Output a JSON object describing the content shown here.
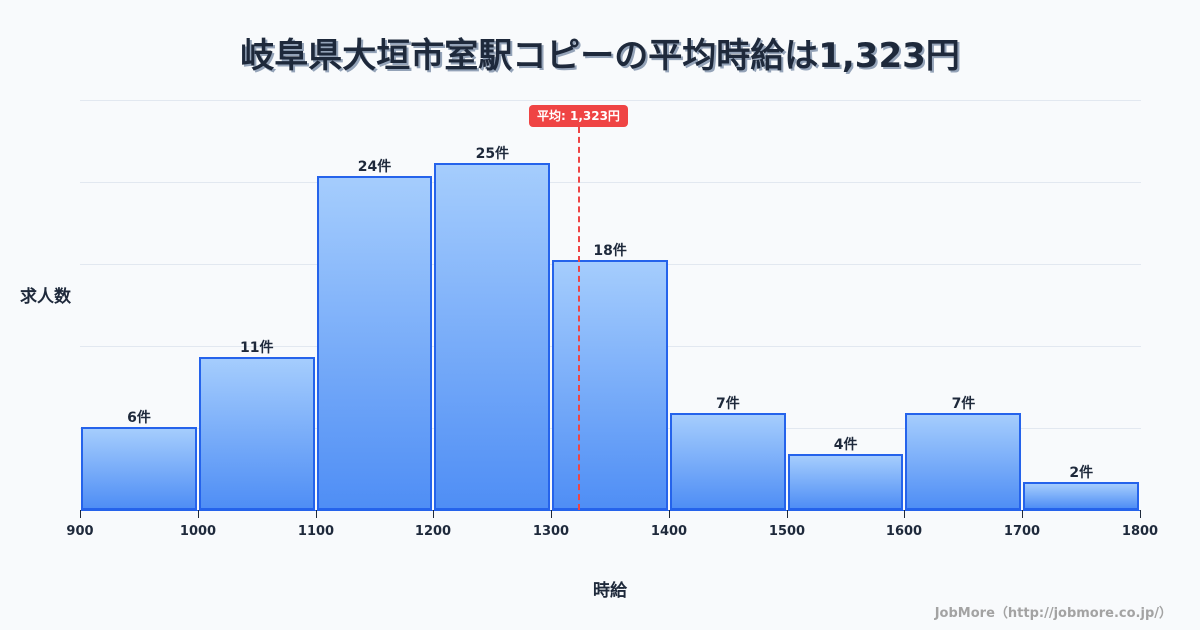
{
  "title": "岐阜県大垣市室駅コピーの平均時給は1,323円",
  "average_badge": "平均: 1,323円",
  "y_axis_label": "求人数",
  "x_axis_label": "時給",
  "footer": "JobMore（http://jobmore.co.jp/）",
  "colors": {
    "bar_fill_top": "#a5cdfd",
    "bar_fill_bottom": "#4f8ef5",
    "bar_border": "#2563eb",
    "average_line": "#ef4444",
    "text": "#1e293b",
    "background": "#f8fafc"
  },
  "chart_data": {
    "type": "bar",
    "title": "岐阜県大垣市室駅コピーの平均時給は1,323円",
    "xlabel": "時給",
    "ylabel": "求人数",
    "bins": [
      [
        900,
        1000
      ],
      [
        1000,
        1100
      ],
      [
        1100,
        1200
      ],
      [
        1200,
        1300
      ],
      [
        1300,
        1400
      ],
      [
        1400,
        1500
      ],
      [
        1500,
        1600
      ],
      [
        1600,
        1700
      ],
      [
        1700,
        1800
      ]
    ],
    "categories": [
      "900-1000",
      "1000-1100",
      "1100-1200",
      "1200-1300",
      "1300-1400",
      "1400-1500",
      "1500-1600",
      "1600-1700",
      "1700-1800"
    ],
    "values": [
      6,
      11,
      24,
      25,
      18,
      7,
      4,
      7,
      2
    ],
    "value_labels": [
      "6件",
      "11件",
      "24件",
      "25件",
      "18件",
      "7件",
      "4件",
      "7件",
      "2件"
    ],
    "x_ticks": [
      "900",
      "1000",
      "1100",
      "1200",
      "1300",
      "1400",
      "1500",
      "1600",
      "1700",
      "1800"
    ],
    "xlim": [
      900,
      1800
    ],
    "ylim": [
      0,
      29.5
    ],
    "grid": true,
    "annotations": [
      {
        "type": "vline",
        "x": 1323,
        "label": "平均: 1,323円",
        "style": "dashed",
        "color": "#ef4444"
      }
    ]
  }
}
